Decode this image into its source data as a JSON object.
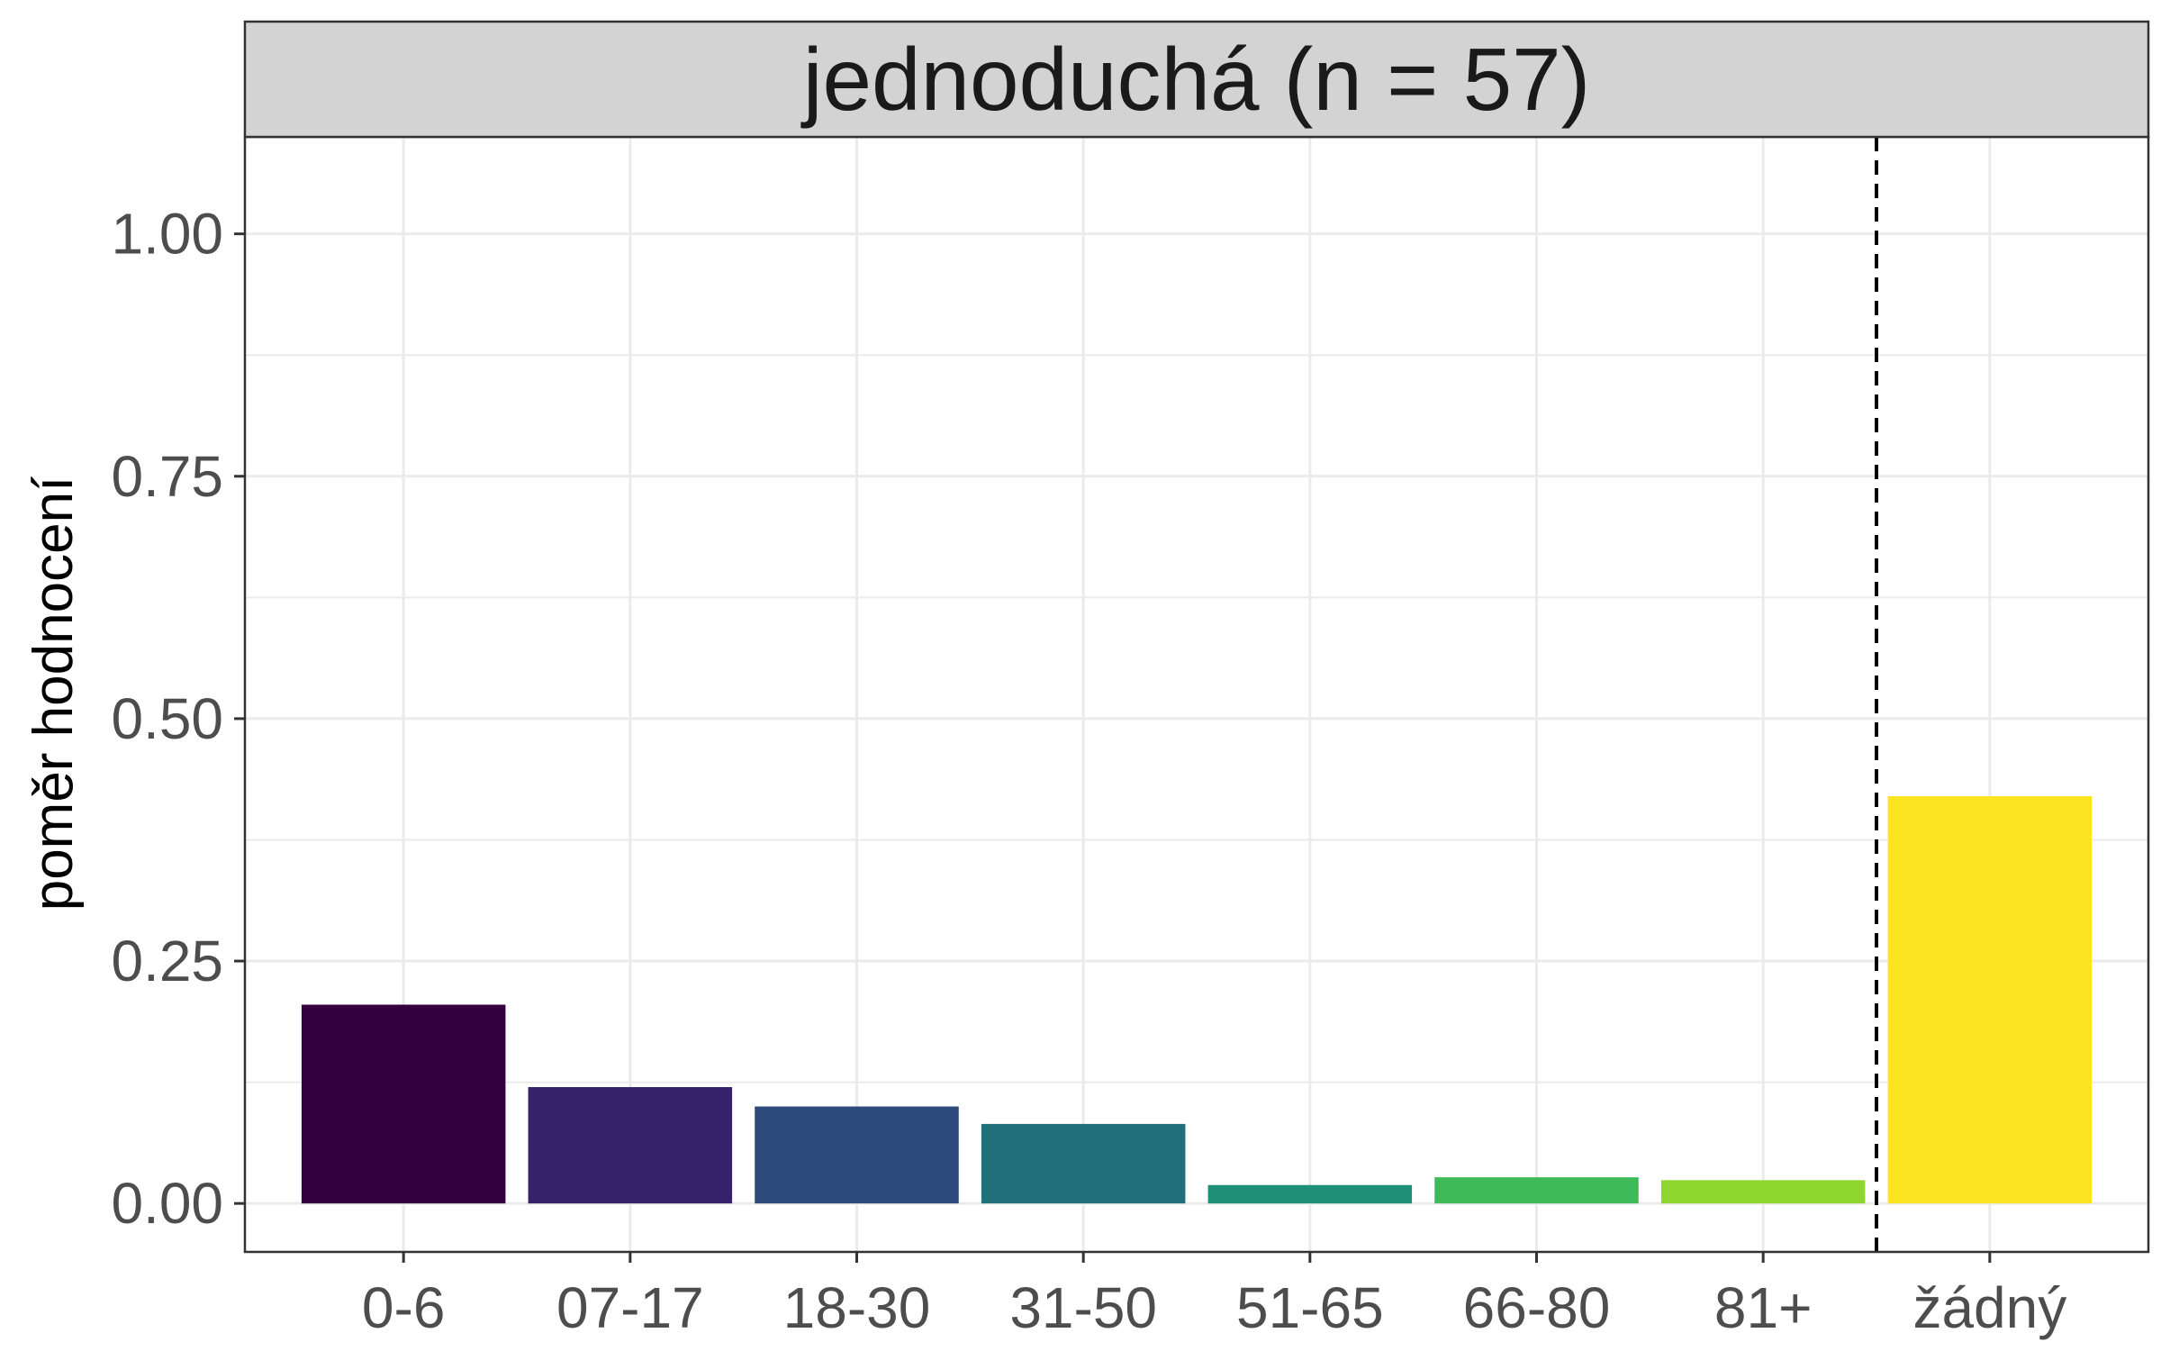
{
  "chart_data": {
    "type": "bar",
    "facet_title": "jednoduchá (n = 57)",
    "xlabel": "",
    "ylabel": "poměr hodnocení",
    "categories": [
      "0-6",
      "07-17",
      "18-30",
      "31-50",
      "51-65",
      "66-80",
      "81+",
      "žádný"
    ],
    "values": [
      0.205,
      0.12,
      0.1,
      0.082,
      0.019,
      0.027,
      0.024,
      0.42
    ],
    "colors": [
      "#350040",
      "#36226a",
      "#2c4a7a",
      "#216f7a",
      "#1e9077",
      "#3fba58",
      "#8fd52f",
      "#fce420"
    ],
    "ylim": [
      -0.05,
      1.1
    ],
    "yticks": [
      0,
      0.25,
      0.5,
      0.75,
      1.0
    ],
    "ytick_labels": [
      "0.00",
      "0.25",
      "0.50",
      "0.75",
      "1.00"
    ],
    "reference_line": {
      "between": [
        "81+",
        "žádný"
      ],
      "style": "dashed"
    },
    "grid": true,
    "legend": "none"
  }
}
